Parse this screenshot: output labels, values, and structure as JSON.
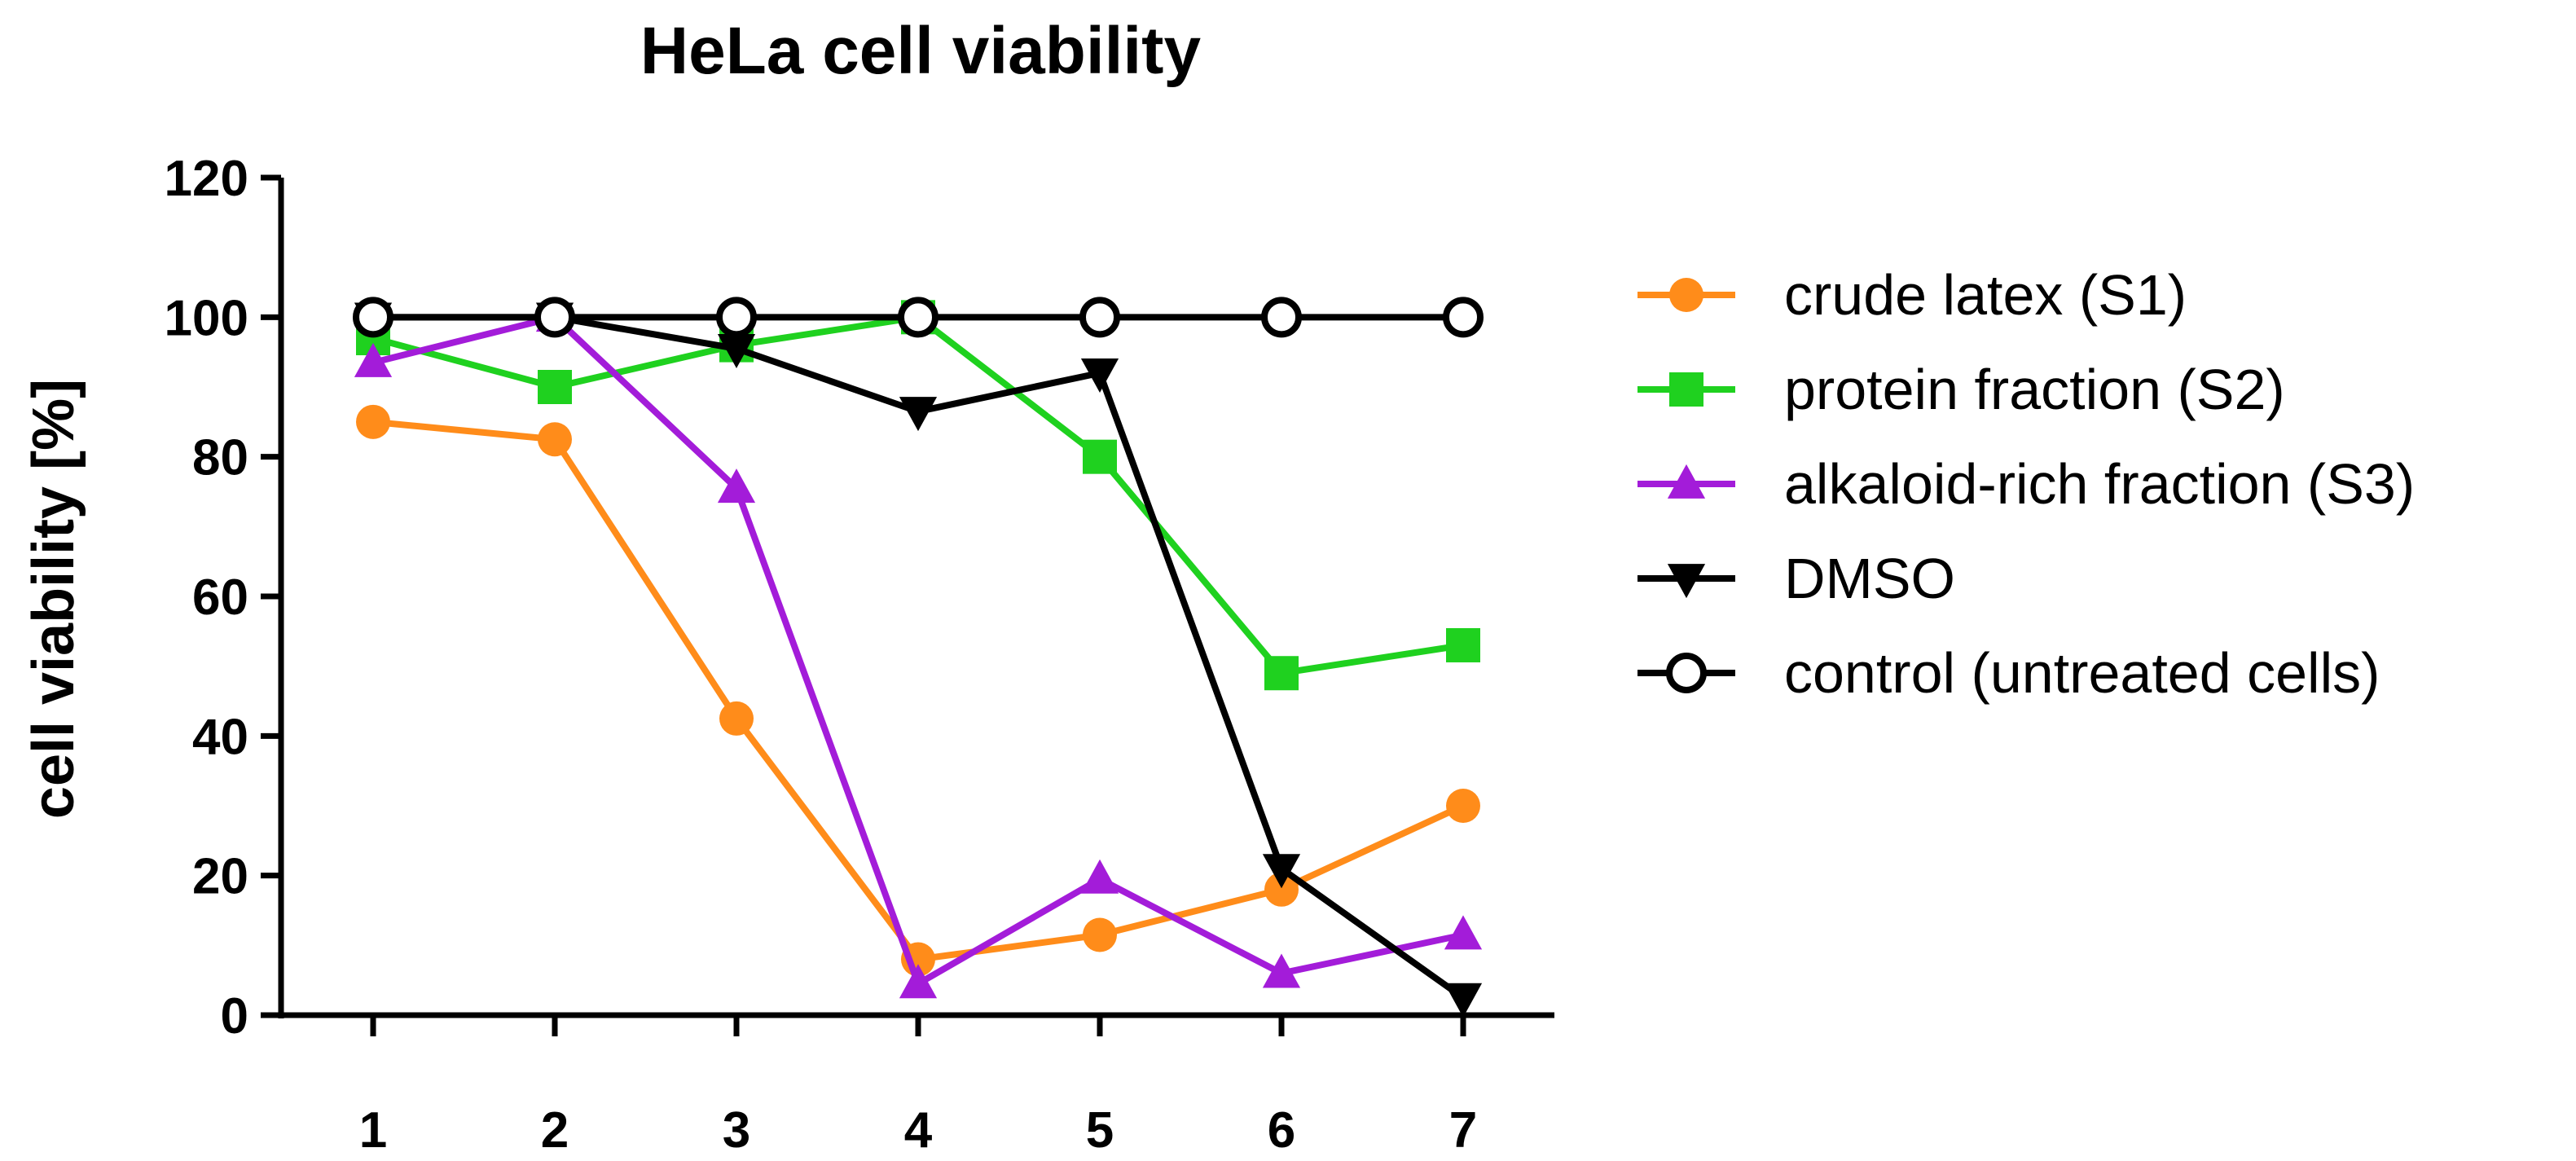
{
  "chart_data": {
    "type": "line",
    "title": "HeLa cell viability",
    "xlabel": "",
    "ylabel": "cell viability [%]",
    "x": [
      1,
      2,
      3,
      4,
      5,
      6,
      7
    ],
    "xticks": [
      "1",
      "2",
      "3",
      "4",
      "5",
      "6",
      "7"
    ],
    "ylim": [
      0,
      120
    ],
    "yticks": [
      "0",
      "20",
      "40",
      "60",
      "80",
      "100",
      "120"
    ],
    "grid": false,
    "legend_position": "right",
    "series": [
      {
        "name": "crude latex (S1)",
        "color": "#ff8c1a",
        "marker": "circle",
        "values": [
          85,
          82.5,
          42.5,
          8,
          11.5,
          18,
          30
        ]
      },
      {
        "name": "protein fraction (S2)",
        "color": "#1fd11f",
        "marker": "square",
        "values": [
          97,
          90,
          96,
          100,
          80,
          49,
          53
        ]
      },
      {
        "name": "alkaloid-rich fraction (S3)",
        "color": "#a31cd9",
        "marker": "triangle-up",
        "values": [
          93.5,
          100,
          75.5,
          4.5,
          19.5,
          6,
          11.5
        ]
      },
      {
        "name": "DMSO",
        "color": "#000000",
        "marker": "triangle-down",
        "values": [
          100,
          100,
          95.5,
          86.5,
          92,
          21,
          2.5
        ]
      },
      {
        "name": "control (untreated cells)",
        "color": "#000000",
        "marker": "open-circle",
        "values": [
          100,
          100,
          100,
          100,
          100,
          100,
          100
        ]
      }
    ]
  }
}
